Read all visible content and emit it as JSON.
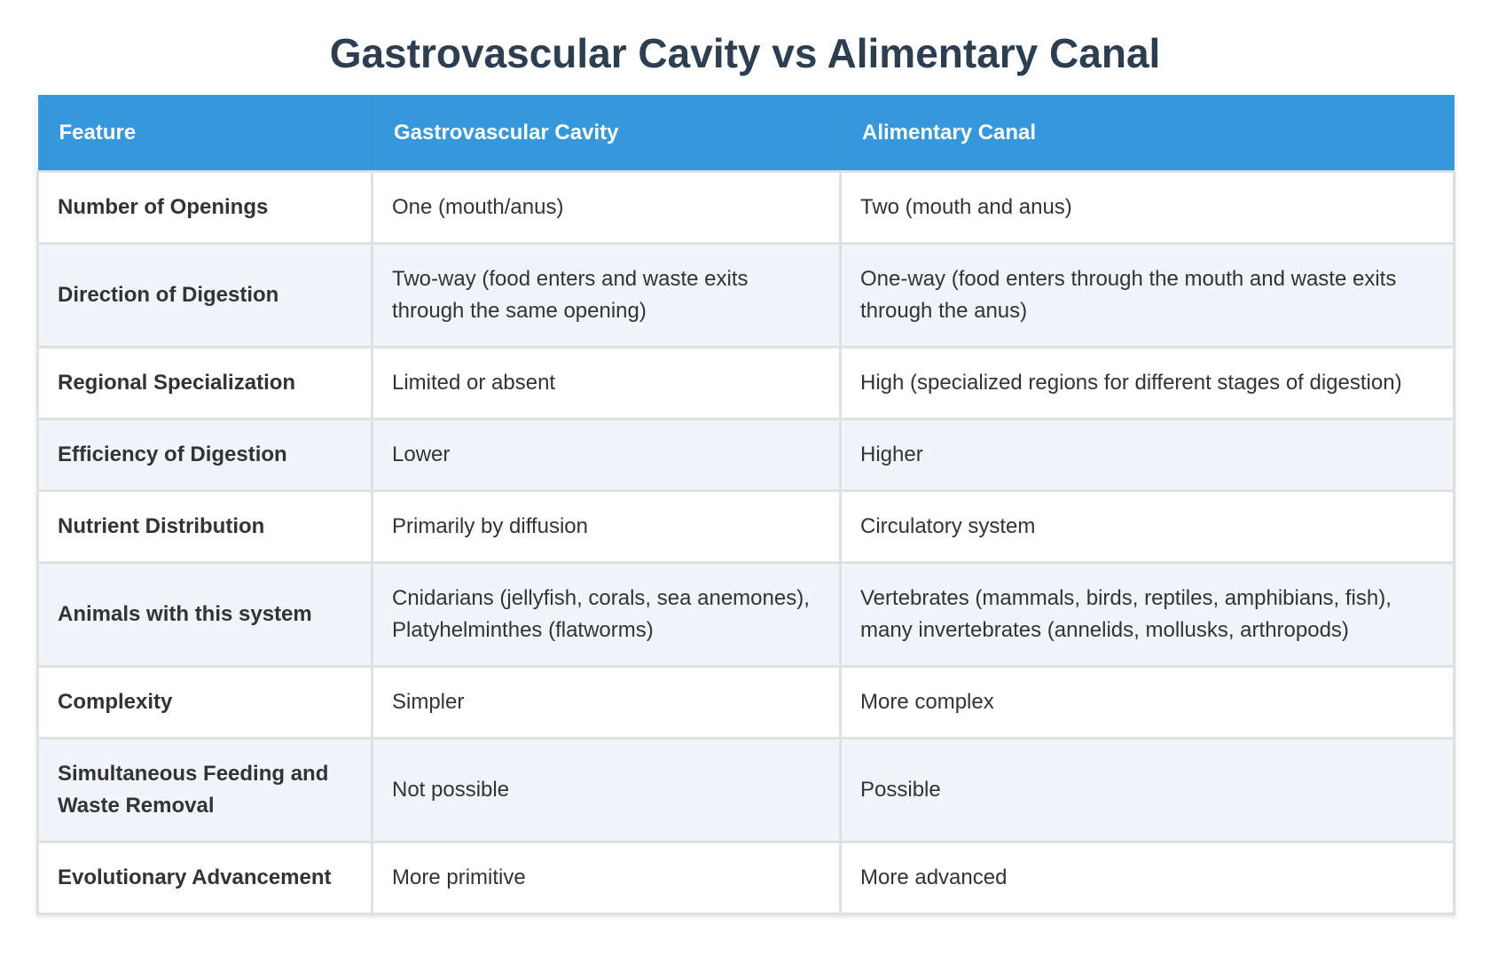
{
  "header": {
    "title": "Gastrovascular Cavity vs Alimentary Canal"
  },
  "table": {
    "columns": [
      "Feature",
      "Gastrovascular Cavity",
      "Alimentary Canal"
    ],
    "rows": [
      [
        "Number of Openings",
        "One (mouth/anus)",
        "Two (mouth and anus)"
      ],
      [
        "Direction of Digestion",
        "Two-way (food enters and waste exits through the same opening)",
        "One-way (food enters through the mouth and waste exits through the anus)"
      ],
      [
        "Regional Specialization",
        "Limited or absent",
        "High (specialized regions for different stages of digestion)"
      ],
      [
        "Efficiency of Digestion",
        "Lower",
        "Higher"
      ],
      [
        "Nutrient Distribution",
        "Primarily by diffusion",
        "Circulatory system"
      ],
      [
        "Animals with this system",
        "Cnidarians (jellyfish, corals, sea anemones), Platyhelminthes (flatworms)",
        "Vertebrates (mammals, birds, reptiles, amphibians, fish), many invertebrates (annelids, mollusks, arthropods)"
      ],
      [
        "Complexity",
        "Simpler",
        "More complex"
      ],
      [
        "Simultaneous Feeding and Waste Removal",
        "Not possible",
        "Possible"
      ],
      [
        "Evolutionary Advancement",
        "More primitive",
        "More advanced"
      ]
    ]
  }
}
